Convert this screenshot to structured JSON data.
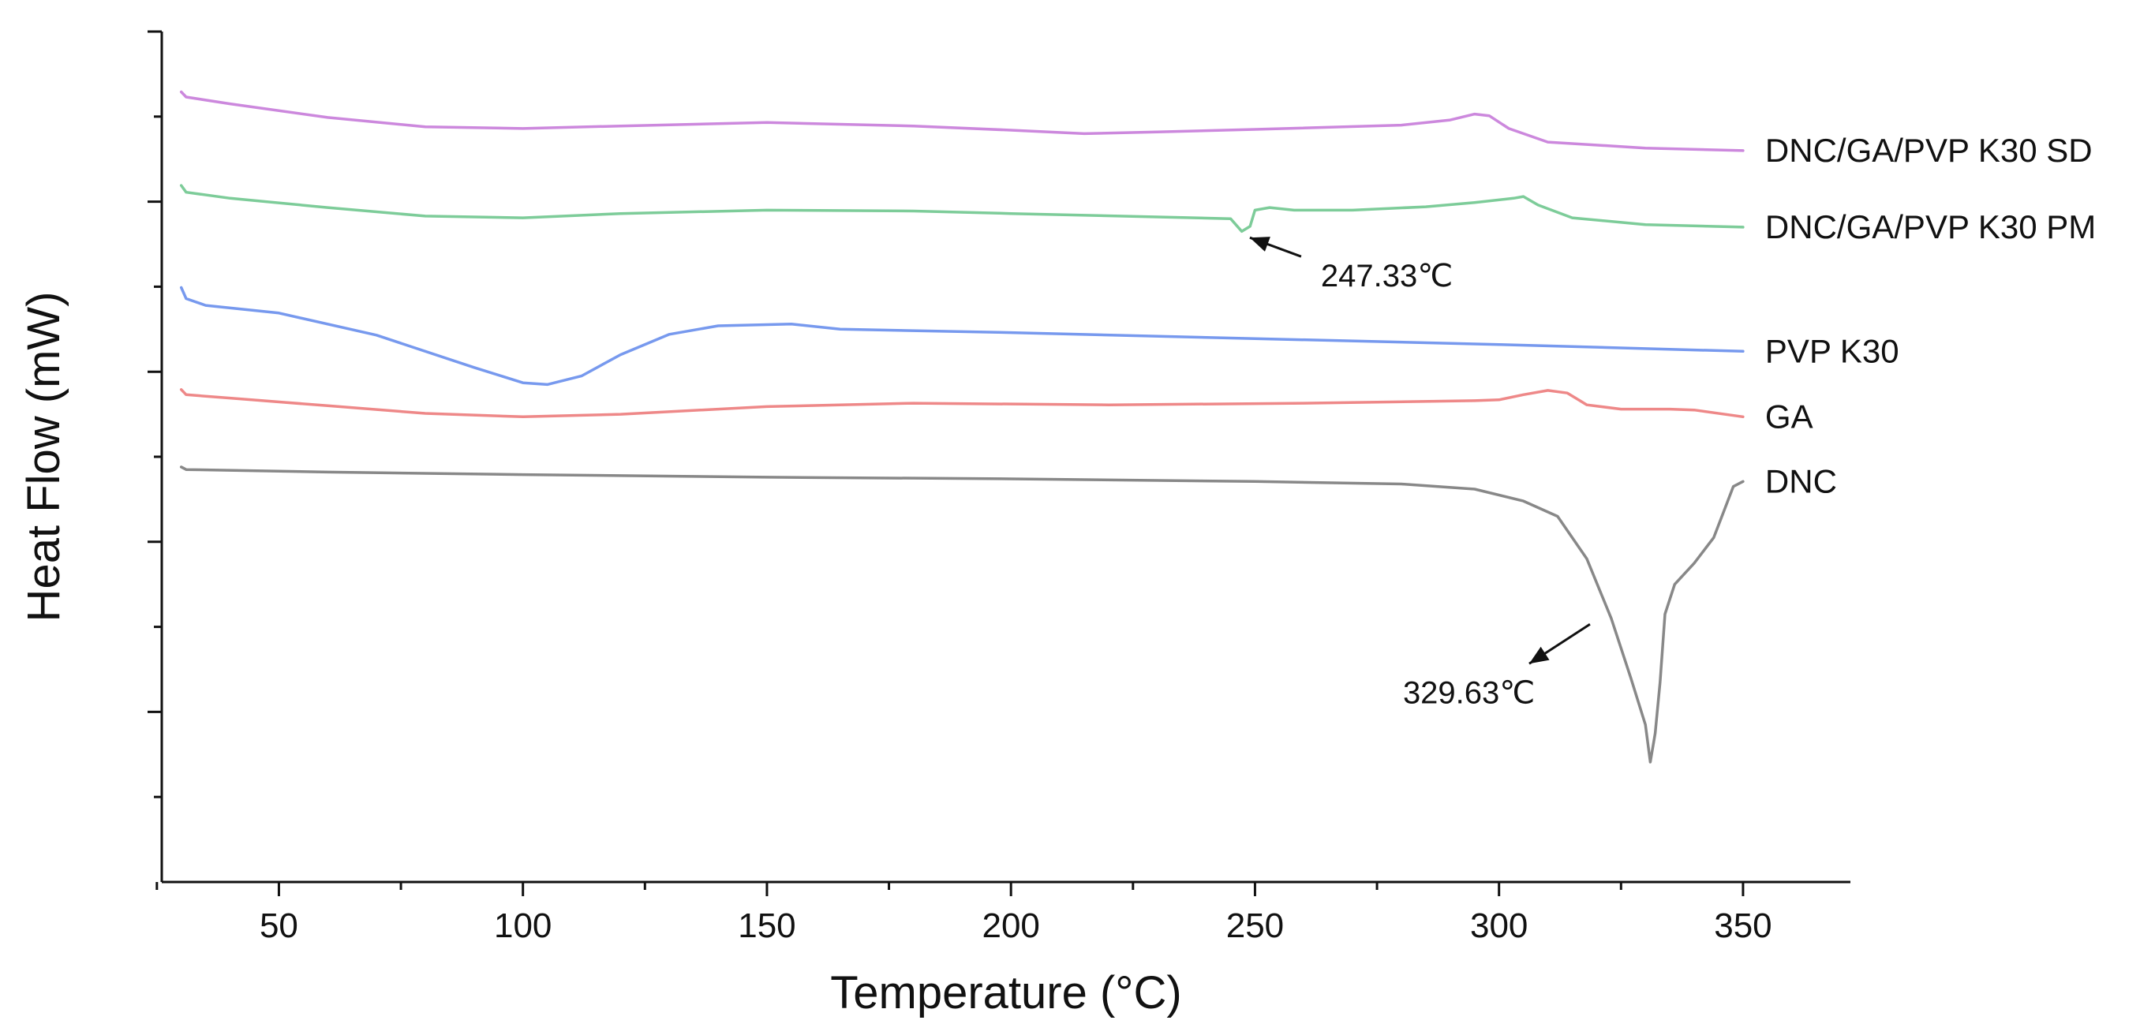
{
  "chart_data": {
    "type": "line",
    "title": "",
    "xlabel": "Temperature (°C)",
    "ylabel": "Heat Flow (mW)",
    "xlim": [
      26,
      372
    ],
    "ylim": [
      0,
      100
    ],
    "xticks": [
      50,
      100,
      150,
      200,
      250,
      300,
      350
    ],
    "xticks_labels": [
      "50",
      "100",
      "150",
      "200",
      "250",
      "300",
      "350"
    ],
    "minor_xticks": [
      25,
      75,
      125,
      175,
      225,
      275,
      325
    ],
    "yticks": [
      10,
      20,
      30,
      40,
      50,
      60,
      70,
      80,
      90,
      100
    ],
    "show_y_tick_labels": false,
    "grid": false,
    "series": [
      {
        "name": "DNC/GA/PVP K30 SD",
        "color": "#cc88dd",
        "points": [
          [
            30,
            92.9
          ],
          [
            31,
            92.3
          ],
          [
            40,
            91.5
          ],
          [
            60,
            89.9
          ],
          [
            80,
            88.8
          ],
          [
            100,
            88.6
          ],
          [
            120,
            88.9
          ],
          [
            150,
            89.3
          ],
          [
            180,
            88.9
          ],
          [
            200,
            88.4
          ],
          [
            215,
            88.0
          ],
          [
            230,
            88.2
          ],
          [
            250,
            88.5
          ],
          [
            280,
            89.0
          ],
          [
            290,
            89.6
          ],
          [
            295,
            90.3
          ],
          [
            298,
            90.1
          ],
          [
            302,
            88.6
          ],
          [
            310,
            87.0
          ],
          [
            330,
            86.3
          ],
          [
            350,
            86.0
          ]
        ]
      },
      {
        "name": "DNC/GA/PVP K30 PM",
        "color": "#7dcc99",
        "points": [
          [
            30,
            81.9
          ],
          [
            31,
            81.1
          ],
          [
            40,
            80.4
          ],
          [
            60,
            79.3
          ],
          [
            80,
            78.3
          ],
          [
            100,
            78.1
          ],
          [
            120,
            78.6
          ],
          [
            150,
            79.0
          ],
          [
            180,
            78.9
          ],
          [
            200,
            78.6
          ],
          [
            230,
            78.2
          ],
          [
            245,
            78.0
          ],
          [
            247.3,
            76.5
          ],
          [
            249,
            77.1
          ],
          [
            250,
            79.0
          ],
          [
            253,
            79.3
          ],
          [
            258,
            79.0
          ],
          [
            270,
            79.0
          ],
          [
            285,
            79.4
          ],
          [
            295,
            79.9
          ],
          [
            303,
            80.4
          ],
          [
            305,
            80.6
          ],
          [
            308,
            79.6
          ],
          [
            315,
            78.1
          ],
          [
            330,
            77.3
          ],
          [
            350,
            77.0
          ]
        ]
      },
      {
        "name": "PVP K30",
        "color": "#7799ee",
        "points": [
          [
            30,
            69.9
          ],
          [
            31,
            68.6
          ],
          [
            35,
            67.8
          ],
          [
            50,
            66.9
          ],
          [
            70,
            64.3
          ],
          [
            90,
            60.5
          ],
          [
            100,
            58.7
          ],
          [
            105,
            58.5
          ],
          [
            112,
            59.5
          ],
          [
            120,
            62.0
          ],
          [
            130,
            64.4
          ],
          [
            140,
            65.4
          ],
          [
            155,
            65.6
          ],
          [
            165,
            65.0
          ],
          [
            200,
            64.6
          ],
          [
            250,
            63.9
          ],
          [
            300,
            63.2
          ],
          [
            350,
            62.4
          ]
        ]
      },
      {
        "name": "GA",
        "color": "#ee8888",
        "points": [
          [
            30,
            57.9
          ],
          [
            31,
            57.3
          ],
          [
            40,
            56.9
          ],
          [
            60,
            56.0
          ],
          [
            80,
            55.1
          ],
          [
            100,
            54.7
          ],
          [
            120,
            55.0
          ],
          [
            150,
            55.9
          ],
          [
            180,
            56.3
          ],
          [
            220,
            56.1
          ],
          [
            260,
            56.3
          ],
          [
            295,
            56.6
          ],
          [
            300,
            56.7
          ],
          [
            305,
            57.3
          ],
          [
            310,
            57.8
          ],
          [
            314,
            57.5
          ],
          [
            318,
            56.1
          ],
          [
            325,
            55.6
          ],
          [
            335,
            55.6
          ],
          [
            340,
            55.5
          ],
          [
            350,
            54.7
          ]
        ]
      },
      {
        "name": "DNC",
        "color": "#888888",
        "points": [
          [
            30,
            48.8
          ],
          [
            31,
            48.5
          ],
          [
            60,
            48.2
          ],
          [
            100,
            47.9
          ],
          [
            150,
            47.6
          ],
          [
            200,
            47.4
          ],
          [
            250,
            47.1
          ],
          [
            280,
            46.8
          ],
          [
            295,
            46.2
          ],
          [
            305,
            44.8
          ],
          [
            312,
            43.0
          ],
          [
            318,
            38.0
          ],
          [
            323,
            31.0
          ],
          [
            327,
            24.0
          ],
          [
            330,
            18.5
          ],
          [
            331,
            14.1
          ],
          [
            332,
            17.5
          ],
          [
            333,
            23.5
          ],
          [
            334,
            31.5
          ],
          [
            336,
            35.0
          ],
          [
            340,
            37.5
          ],
          [
            344,
            40.5
          ],
          [
            346,
            43.5
          ],
          [
            348,
            46.5
          ],
          [
            350,
            47.1
          ]
        ]
      }
    ],
    "annotations": [
      {
        "label": "247.33℃",
        "temperature": 247.33,
        "series": "DNC/GA/PVP K30 PM"
      },
      {
        "label": "329.63℃",
        "temperature": 329.63,
        "series": "DNC"
      }
    ]
  }
}
